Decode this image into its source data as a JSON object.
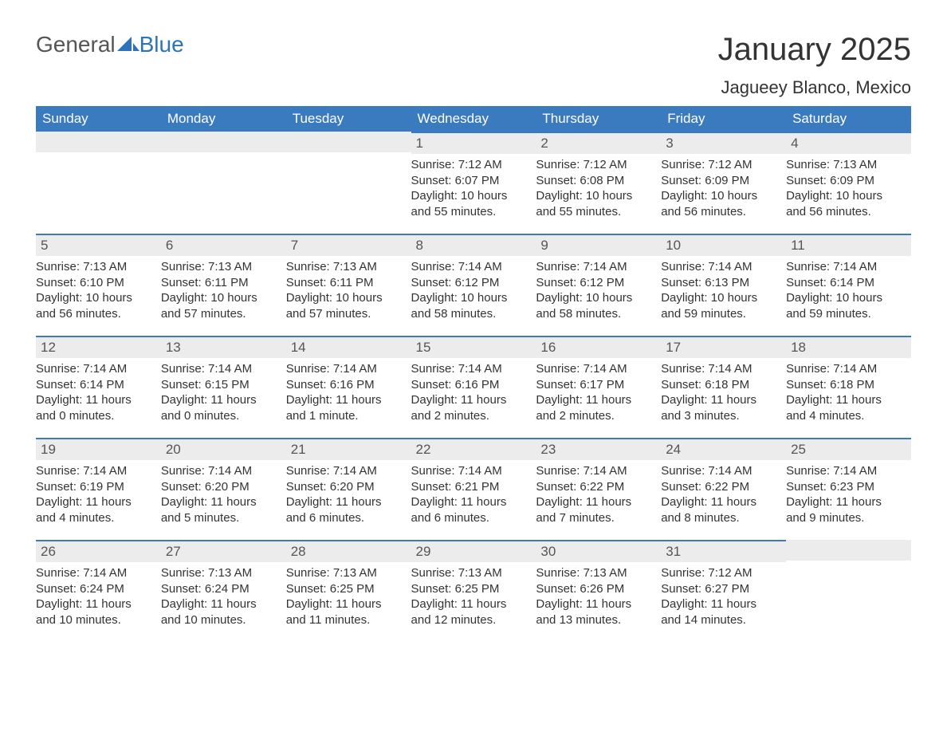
{
  "logo": {
    "text_general": "General",
    "text_blue": "Blue"
  },
  "header": {
    "month_title": "January 2025",
    "location": "Jagueey Blanco, Mexico"
  },
  "colors": {
    "header_bg": "#3a7bbf",
    "header_text": "#ffffff",
    "daynum_bg": "#ececec",
    "daynum_border": "#3a7bbf",
    "body_text": "#333333",
    "logo_blue": "#2d73b9",
    "logo_gray": "#555555",
    "page_bg": "#ffffff"
  },
  "weekdays": [
    "Sunday",
    "Monday",
    "Tuesday",
    "Wednesday",
    "Thursday",
    "Friday",
    "Saturday"
  ],
  "weeks": [
    [
      {
        "day": "",
        "sunrise": "",
        "sunset": "",
        "daylight_a": "",
        "daylight_b": ""
      },
      {
        "day": "",
        "sunrise": "",
        "sunset": "",
        "daylight_a": "",
        "daylight_b": ""
      },
      {
        "day": "",
        "sunrise": "",
        "sunset": "",
        "daylight_a": "",
        "daylight_b": ""
      },
      {
        "day": "1",
        "sunrise": "Sunrise: 7:12 AM",
        "sunset": "Sunset: 6:07 PM",
        "daylight_a": "Daylight: 10 hours",
        "daylight_b": "and 55 minutes."
      },
      {
        "day": "2",
        "sunrise": "Sunrise: 7:12 AM",
        "sunset": "Sunset: 6:08 PM",
        "daylight_a": "Daylight: 10 hours",
        "daylight_b": "and 55 minutes."
      },
      {
        "day": "3",
        "sunrise": "Sunrise: 7:12 AM",
        "sunset": "Sunset: 6:09 PM",
        "daylight_a": "Daylight: 10 hours",
        "daylight_b": "and 56 minutes."
      },
      {
        "day": "4",
        "sunrise": "Sunrise: 7:13 AM",
        "sunset": "Sunset: 6:09 PM",
        "daylight_a": "Daylight: 10 hours",
        "daylight_b": "and 56 minutes."
      }
    ],
    [
      {
        "day": "5",
        "sunrise": "Sunrise: 7:13 AM",
        "sunset": "Sunset: 6:10 PM",
        "daylight_a": "Daylight: 10 hours",
        "daylight_b": "and 56 minutes."
      },
      {
        "day": "6",
        "sunrise": "Sunrise: 7:13 AM",
        "sunset": "Sunset: 6:11 PM",
        "daylight_a": "Daylight: 10 hours",
        "daylight_b": "and 57 minutes."
      },
      {
        "day": "7",
        "sunrise": "Sunrise: 7:13 AM",
        "sunset": "Sunset: 6:11 PM",
        "daylight_a": "Daylight: 10 hours",
        "daylight_b": "and 57 minutes."
      },
      {
        "day": "8",
        "sunrise": "Sunrise: 7:14 AM",
        "sunset": "Sunset: 6:12 PM",
        "daylight_a": "Daylight: 10 hours",
        "daylight_b": "and 58 minutes."
      },
      {
        "day": "9",
        "sunrise": "Sunrise: 7:14 AM",
        "sunset": "Sunset: 6:12 PM",
        "daylight_a": "Daylight: 10 hours",
        "daylight_b": "and 58 minutes."
      },
      {
        "day": "10",
        "sunrise": "Sunrise: 7:14 AM",
        "sunset": "Sunset: 6:13 PM",
        "daylight_a": "Daylight: 10 hours",
        "daylight_b": "and 59 minutes."
      },
      {
        "day": "11",
        "sunrise": "Sunrise: 7:14 AM",
        "sunset": "Sunset: 6:14 PM",
        "daylight_a": "Daylight: 10 hours",
        "daylight_b": "and 59 minutes."
      }
    ],
    [
      {
        "day": "12",
        "sunrise": "Sunrise: 7:14 AM",
        "sunset": "Sunset: 6:14 PM",
        "daylight_a": "Daylight: 11 hours",
        "daylight_b": "and 0 minutes."
      },
      {
        "day": "13",
        "sunrise": "Sunrise: 7:14 AM",
        "sunset": "Sunset: 6:15 PM",
        "daylight_a": "Daylight: 11 hours",
        "daylight_b": "and 0 minutes."
      },
      {
        "day": "14",
        "sunrise": "Sunrise: 7:14 AM",
        "sunset": "Sunset: 6:16 PM",
        "daylight_a": "Daylight: 11 hours",
        "daylight_b": "and 1 minute."
      },
      {
        "day": "15",
        "sunrise": "Sunrise: 7:14 AM",
        "sunset": "Sunset: 6:16 PM",
        "daylight_a": "Daylight: 11 hours",
        "daylight_b": "and 2 minutes."
      },
      {
        "day": "16",
        "sunrise": "Sunrise: 7:14 AM",
        "sunset": "Sunset: 6:17 PM",
        "daylight_a": "Daylight: 11 hours",
        "daylight_b": "and 2 minutes."
      },
      {
        "day": "17",
        "sunrise": "Sunrise: 7:14 AM",
        "sunset": "Sunset: 6:18 PM",
        "daylight_a": "Daylight: 11 hours",
        "daylight_b": "and 3 minutes."
      },
      {
        "day": "18",
        "sunrise": "Sunrise: 7:14 AM",
        "sunset": "Sunset: 6:18 PM",
        "daylight_a": "Daylight: 11 hours",
        "daylight_b": "and 4 minutes."
      }
    ],
    [
      {
        "day": "19",
        "sunrise": "Sunrise: 7:14 AM",
        "sunset": "Sunset: 6:19 PM",
        "daylight_a": "Daylight: 11 hours",
        "daylight_b": "and 4 minutes."
      },
      {
        "day": "20",
        "sunrise": "Sunrise: 7:14 AM",
        "sunset": "Sunset: 6:20 PM",
        "daylight_a": "Daylight: 11 hours",
        "daylight_b": "and 5 minutes."
      },
      {
        "day": "21",
        "sunrise": "Sunrise: 7:14 AM",
        "sunset": "Sunset: 6:20 PM",
        "daylight_a": "Daylight: 11 hours",
        "daylight_b": "and 6 minutes."
      },
      {
        "day": "22",
        "sunrise": "Sunrise: 7:14 AM",
        "sunset": "Sunset: 6:21 PM",
        "daylight_a": "Daylight: 11 hours",
        "daylight_b": "and 6 minutes."
      },
      {
        "day": "23",
        "sunrise": "Sunrise: 7:14 AM",
        "sunset": "Sunset: 6:22 PM",
        "daylight_a": "Daylight: 11 hours",
        "daylight_b": "and 7 minutes."
      },
      {
        "day": "24",
        "sunrise": "Sunrise: 7:14 AM",
        "sunset": "Sunset: 6:22 PM",
        "daylight_a": "Daylight: 11 hours",
        "daylight_b": "and 8 minutes."
      },
      {
        "day": "25",
        "sunrise": "Sunrise: 7:14 AM",
        "sunset": "Sunset: 6:23 PM",
        "daylight_a": "Daylight: 11 hours",
        "daylight_b": "and 9 minutes."
      }
    ],
    [
      {
        "day": "26",
        "sunrise": "Sunrise: 7:14 AM",
        "sunset": "Sunset: 6:24 PM",
        "daylight_a": "Daylight: 11 hours",
        "daylight_b": "and 10 minutes."
      },
      {
        "day": "27",
        "sunrise": "Sunrise: 7:13 AM",
        "sunset": "Sunset: 6:24 PM",
        "daylight_a": "Daylight: 11 hours",
        "daylight_b": "and 10 minutes."
      },
      {
        "day": "28",
        "sunrise": "Sunrise: 7:13 AM",
        "sunset": "Sunset: 6:25 PM",
        "daylight_a": "Daylight: 11 hours",
        "daylight_b": "and 11 minutes."
      },
      {
        "day": "29",
        "sunrise": "Sunrise: 7:13 AM",
        "sunset": "Sunset: 6:25 PM",
        "daylight_a": "Daylight: 11 hours",
        "daylight_b": "and 12 minutes."
      },
      {
        "day": "30",
        "sunrise": "Sunrise: 7:13 AM",
        "sunset": "Sunset: 6:26 PM",
        "daylight_a": "Daylight: 11 hours",
        "daylight_b": "and 13 minutes."
      },
      {
        "day": "31",
        "sunrise": "Sunrise: 7:12 AM",
        "sunset": "Sunset: 6:27 PM",
        "daylight_a": "Daylight: 11 hours",
        "daylight_b": "and 14 minutes."
      },
      {
        "day": "",
        "sunrise": "",
        "sunset": "",
        "daylight_a": "",
        "daylight_b": ""
      }
    ]
  ]
}
